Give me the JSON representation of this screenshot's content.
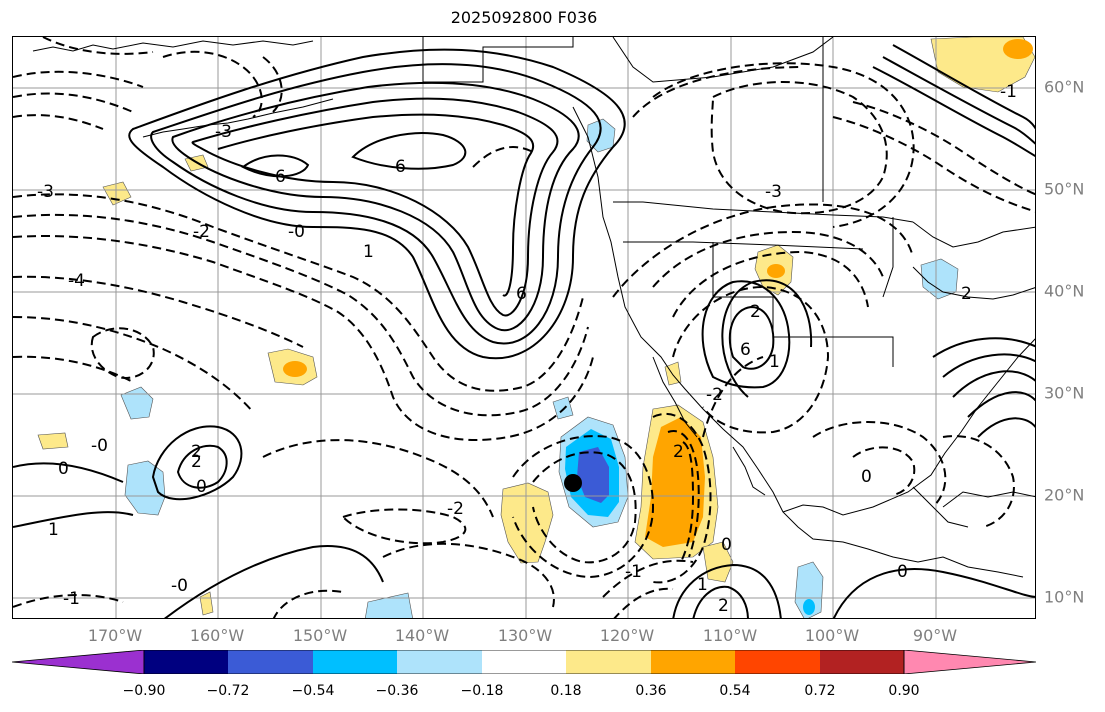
{
  "title": "2025092800 F036",
  "lon_labels": [
    "170°W",
    "160°W",
    "150°W",
    "140°W",
    "130°W",
    "120°W",
    "110°W",
    "100°W",
    "90°W"
  ],
  "lat_labels": [
    "60°N",
    "50°N",
    "40°N",
    "30°N",
    "20°N",
    "10°N"
  ],
  "colorbar": {
    "tick_labels": [
      "−0.90",
      "−0.72",
      "−0.54",
      "−0.36",
      "−0.18",
      "0.18",
      "0.36",
      "0.54",
      "0.72",
      "0.90"
    ],
    "colors": [
      "#9b30d0",
      "#000080",
      "#3b5bd6",
      "#00bfff",
      "#aee3fb",
      "#ffffff",
      "#fde98a",
      "#ffa500",
      "#ff4500",
      "#b22222",
      "#ff88b0"
    ]
  },
  "contour_labels": [
    "6",
    "6",
    "6",
    "6",
    "-3",
    "-3",
    "-4",
    "-0",
    "-2",
    "2",
    "-1",
    "0",
    "1",
    "0",
    "-0",
    "2",
    "1",
    "-2",
    "0",
    "2",
    "2",
    "-1",
    "-3",
    "-2",
    "0",
    "2",
    "1",
    "-0",
    "0",
    "-1",
    "1",
    "2"
  ],
  "storm_marker": "storm-center-dot"
}
